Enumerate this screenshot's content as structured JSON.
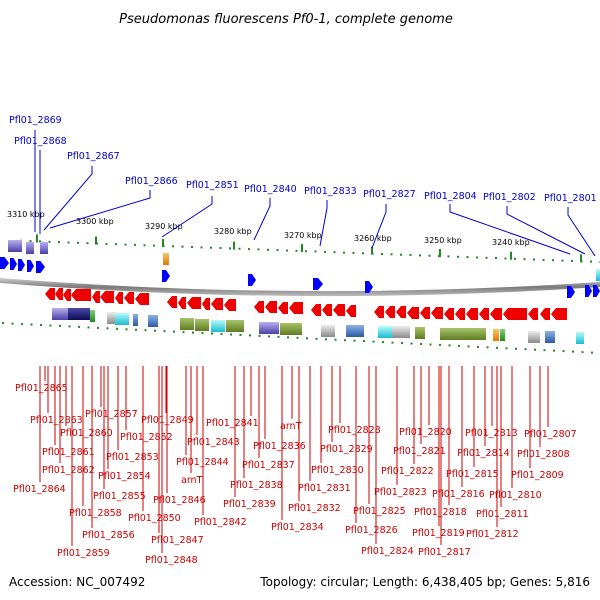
{
  "title": "Pseudomonas fluorescens Pf0-1, complete genome",
  "footer": {
    "accession": "Accession: NC_007492",
    "summary": "Topology: circular; Length: 6,438,405 bp; Genes: 5,816"
  },
  "scale": {
    "ticks": [
      "3310 kbp",
      "3300 kbp",
      "3290 kbp",
      "3280 kbp",
      "3270 kbp",
      "3260 kbp",
      "3250 kbp",
      "3240 kbp"
    ]
  },
  "forward_labels": [
    "Pfl01_2869",
    "Pfl01_2868",
    "Pfl01_2867",
    "Pfl01_2866",
    "Pfl01_2851",
    "Pfl01_2840",
    "Pfl01_2833",
    "Pfl01_2827",
    "Pfl01_2804",
    "Pfl01_2802",
    "Pfl01_2801"
  ],
  "reverse_labels": [
    "Pfl01_2865",
    "Pfl01_2863",
    "Pfl01_2860",
    "Pfl01_2857",
    "Pfl01_2849",
    "Pfl01_2841",
    "arnT",
    "Pfl01_2828",
    "Pfl01_2820",
    "Pfl01_2813",
    "Pfl01_2807",
    "Pfl01_2852",
    "Pfl01_2843",
    "Pfl01_2836",
    "Pfl01_2829",
    "Pfl01_2821",
    "Pfl01_2814",
    "Pfl01_2808",
    "Pfl01_2861",
    "Pfl01_2853",
    "Pfl01_2844",
    "Pfl01_2837",
    "Pfl01_2830",
    "Pfl01_2822",
    "Pfl01_2815",
    "Pfl01_2809",
    "Pfl01_2862",
    "Pfl01_2854",
    "arnT",
    "Pfl01_2838",
    "Pfl01_2831",
    "Pfl01_2823",
    "Pfl01_2816",
    "Pfl01_2810",
    "Pfl01_2864",
    "Pfl01_2855",
    "Pfl01_2846",
    "Pfl01_2839",
    "Pfl01_2832",
    "Pfl01_2825",
    "Pfl01_2818",
    "Pfl01_2811",
    "Pfl01_2858",
    "Pfl01_2850",
    "Pfl01_2842",
    "Pfl01_2834",
    "Pfl01_2826",
    "Pfl01_2819",
    "Pfl01_2812",
    "Pfl01_2856",
    "Pfl01_2847",
    "Pfl01_2824",
    "Pfl01_2817",
    "Pfl01_2859",
    "Pfl01_2848"
  ],
  "colors": {
    "forward_gene": "#0000ff",
    "reverse_gene": "#ee0000",
    "forward_label": "#0000cc",
    "reverse_label": "#cc0000",
    "tick": "#228822",
    "backbone": "#888888"
  }
}
